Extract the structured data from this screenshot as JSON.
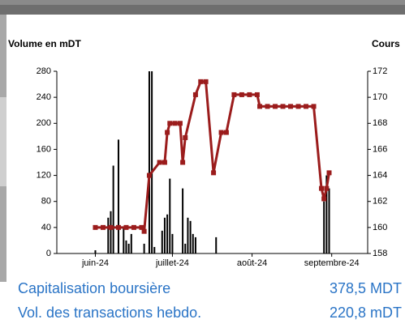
{
  "chart_data": {
    "type": "combo",
    "y_label": "Volume en mDT",
    "y2_label": "Cours",
    "xlim": [
      -15,
      106
    ],
    "xticks": [
      {
        "value": 0,
        "label": "juin-24"
      },
      {
        "value": 30,
        "label": "juillet-24"
      },
      {
        "value": 61,
        "label": "août-24"
      },
      {
        "value": 92,
        "label": "septembre-24"
      }
    ],
    "ylim": [
      0,
      280
    ],
    "yticks": [
      0,
      40,
      80,
      120,
      160,
      200,
      240,
      280
    ],
    "y2lim": [
      158,
      172
    ],
    "y2ticks": [
      158,
      160,
      162,
      164,
      166,
      168,
      170,
      172
    ],
    "series": [
      {
        "type": "bar",
        "color": "#000000",
        "x": [
          0,
          5,
          6,
          7,
          9,
          11,
          12,
          13,
          14,
          19,
          21,
          22,
          23,
          26,
          27,
          28,
          29,
          30,
          34,
          35,
          36,
          37,
          38,
          39,
          47,
          89,
          90,
          91
        ],
        "values": [
          5,
          55,
          65,
          135,
          175,
          40,
          20,
          15,
          30,
          15,
          280,
          280,
          10,
          35,
          55,
          60,
          115,
          30,
          100,
          15,
          55,
          50,
          30,
          25,
          25,
          80,
          120,
          100
        ]
      },
      {
        "type": "line",
        "axis": "y2",
        "color": "#9b1c1c",
        "x": [
          0,
          3,
          6,
          9,
          12,
          15,
          18,
          19,
          21,
          25,
          27,
          28,
          29,
          31,
          33,
          34,
          35,
          39,
          41,
          43,
          46,
          49,
          51,
          54,
          57,
          60,
          63,
          64,
          67,
          70,
          73,
          76,
          79,
          82,
          85,
          88,
          89,
          90,
          91
        ],
        "values": [
          160,
          160,
          160,
          160,
          160,
          160,
          160,
          159.7,
          164,
          165,
          165,
          167.3,
          168,
          168,
          168,
          165,
          166.9,
          170.2,
          171.2,
          171.2,
          164.2,
          167.3,
          167.3,
          170.2,
          170.2,
          170.2,
          170.2,
          169.3,
          169.3,
          169.3,
          169.3,
          169.3,
          169.3,
          169.3,
          169.3,
          163,
          162.2,
          163,
          164.2
        ]
      }
    ]
  },
  "summary": [
    {
      "label": "Capitalisation boursière",
      "value": "378,5 MDT"
    },
    {
      "label": "Vol. des transactions hebdo.",
      "value": "220,8 mDT"
    }
  ]
}
